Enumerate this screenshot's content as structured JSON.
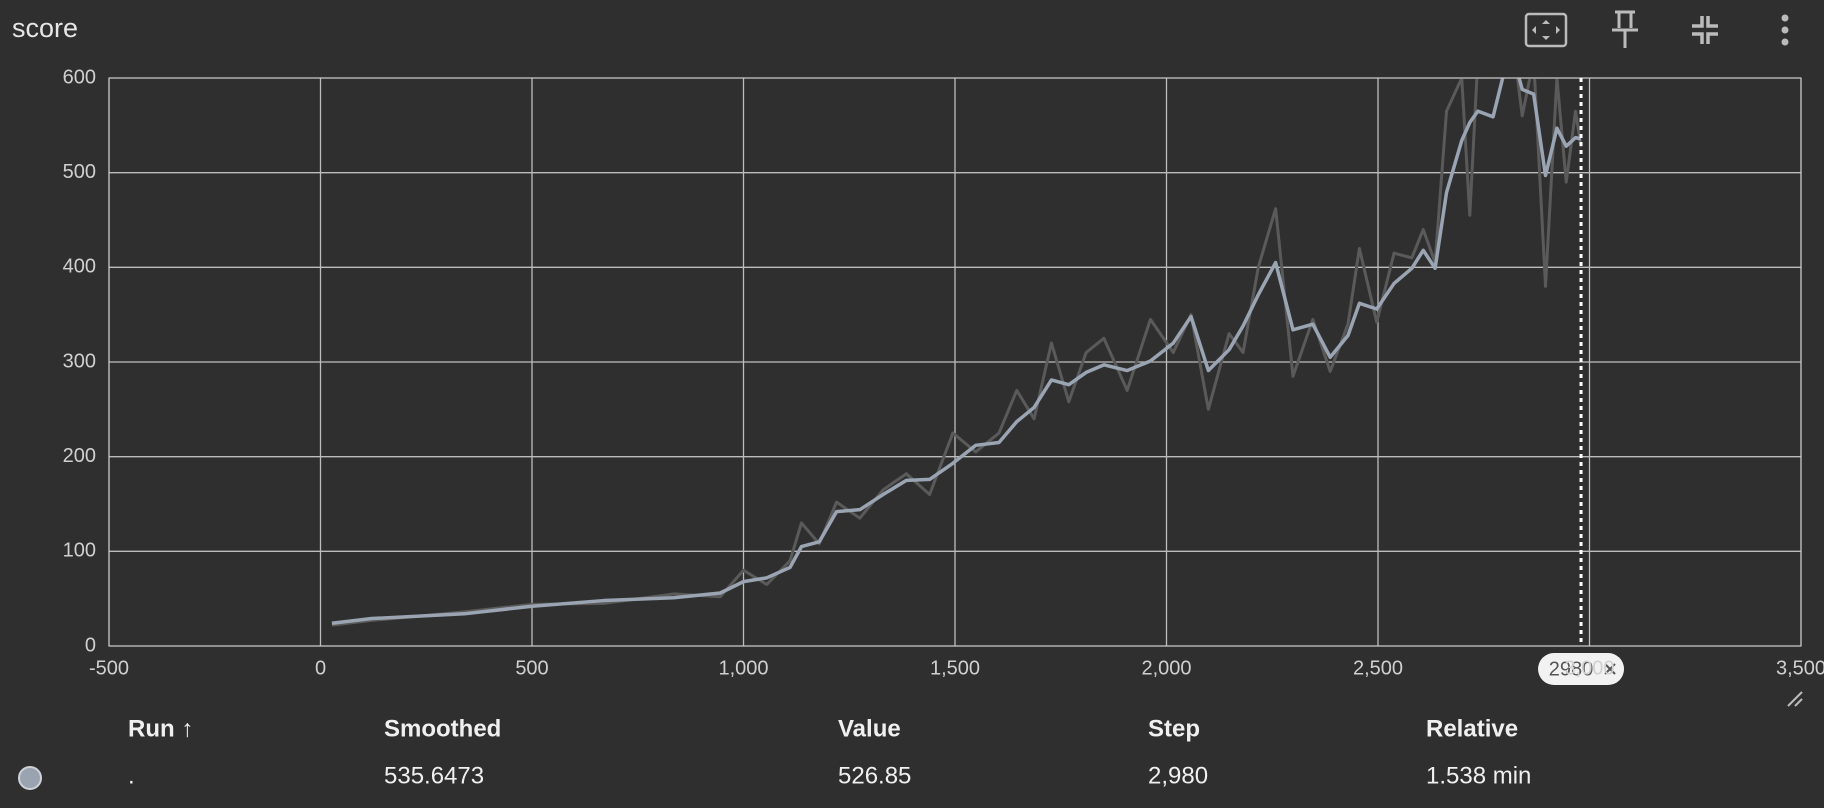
{
  "chart_data": {
    "type": "line",
    "title": "score",
    "x": [
      27,
      121,
      340,
      500,
      670,
      835,
      945,
      1000,
      1055,
      1110,
      1137,
      1179,
      1220,
      1275,
      1330,
      1385,
      1440,
      1495,
      1549,
      1604,
      1646,
      1687,
      1728,
      1769,
      1810,
      1852,
      1907,
      1962,
      2016,
      2058,
      2099,
      2148,
      2181,
      2217,
      2258,
      2299,
      2346,
      2387,
      2429,
      2456,
      2497,
      2538,
      2580,
      2607,
      2635,
      2662,
      2698,
      2717,
      2736,
      2772,
      2813,
      2841,
      2868,
      2896,
      2923,
      2945,
      2967,
      2980
    ],
    "series": [
      {
        "color": "#5a5a5a",
        "values": [
          22,
          27,
          36,
          44,
          45,
          55,
          52,
          80,
          65,
          90,
          130,
          108,
          152,
          135,
          165,
          182,
          160,
          225,
          205,
          225,
          270,
          240,
          320,
          258,
          310,
          325,
          270,
          345,
          310,
          350,
          250,
          330,
          310,
          400,
          462,
          285,
          345,
          290,
          340,
          420,
          342,
          415,
          410,
          440,
          405,
          565,
          600,
          455,
          620,
          650,
          660,
          560,
          620,
          380,
          600,
          490,
          565,
          526.85
        ]
      },
      {
        "color": "#9aa4b2",
        "values": [
          24,
          29,
          34,
          42,
          48,
          51,
          56,
          68,
          72,
          83,
          105,
          110,
          142,
          144,
          160,
          175,
          176,
          193,
          212,
          215,
          237,
          252,
          281,
          276,
          289,
          297,
          291,
          301,
          320,
          348,
          291,
          313,
          338,
          371,
          405,
          334,
          340,
          305,
          328,
          362,
          356,
          383,
          399,
          418,
          399,
          479,
          534,
          553,
          565,
          559,
          633,
          588,
          583,
          497,
          547,
          528,
          537,
          535.6473
        ]
      }
    ],
    "xlim": [
      -500,
      3500
    ],
    "ylim": [
      0,
      600
    ],
    "xticks": [
      {
        "value": -500,
        "label": "-500"
      },
      0,
      500,
      {
        "value": 1000,
        "label": "1,000"
      },
      {
        "value": 1500,
        "label": "1,500"
      },
      {
        "value": 2000,
        "label": "2,000"
      },
      {
        "value": 2500,
        "label": "2,500"
      },
      {
        "value": 3000,
        "label": "3,000"
      },
      {
        "value": 3500,
        "label": "3,500"
      }
    ],
    "yticks": [
      0,
      100,
      200,
      300,
      400,
      500,
      600
    ],
    "grid": true,
    "hover_step": 2980
  },
  "table": {
    "columns": [
      "Run ↑",
      "Smoothed",
      "Value",
      "Step",
      "Relative"
    ],
    "rows": [
      [
        ".",
        "535.6473",
        "526.85",
        "2,980",
        "1.538 min"
      ]
    ]
  }
}
